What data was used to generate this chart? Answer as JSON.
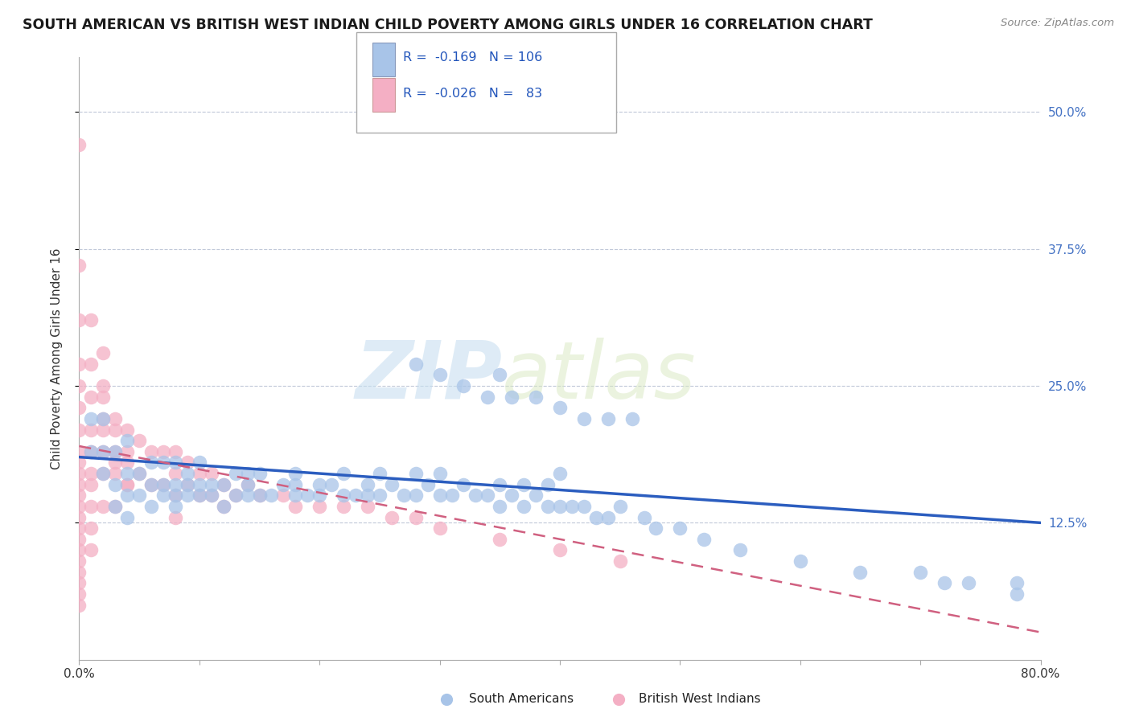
{
  "title": "SOUTH AMERICAN VS BRITISH WEST INDIAN CHILD POVERTY AMONG GIRLS UNDER 16 CORRELATION CHART",
  "source": "Source: ZipAtlas.com",
  "ylabel": "Child Poverty Among Girls Under 16",
  "xlim": [
    0.0,
    0.8
  ],
  "ylim": [
    0.0,
    0.55
  ],
  "ytick_values": [
    0.125,
    0.25,
    0.375,
    0.5
  ],
  "ytick_labels": [
    "12.5%",
    "25.0%",
    "37.5%",
    "50.0%"
  ],
  "sa_color": "#a8c4e8",
  "bwi_color": "#f4afc4",
  "sa_line_color": "#2b5dbf",
  "bwi_line_color": "#d06080",
  "watermark_zip": "ZIP",
  "watermark_atlas": "atlas",
  "title_fontsize": 12.5,
  "sa_R": -0.169,
  "sa_N": 106,
  "bwi_R": -0.026,
  "bwi_N": 83,
  "sa_line_x": [
    0.0,
    0.8
  ],
  "sa_line_y": [
    0.185,
    0.125
  ],
  "bwi_line_x": [
    0.0,
    0.8
  ],
  "bwi_line_y": [
    0.195,
    0.025
  ],
  "sa_scatter_x": [
    0.01,
    0.01,
    0.02,
    0.02,
    0.02,
    0.03,
    0.03,
    0.03,
    0.04,
    0.04,
    0.04,
    0.04,
    0.05,
    0.05,
    0.06,
    0.06,
    0.06,
    0.07,
    0.07,
    0.07,
    0.08,
    0.08,
    0.08,
    0.08,
    0.09,
    0.09,
    0.09,
    0.1,
    0.1,
    0.1,
    0.11,
    0.11,
    0.12,
    0.12,
    0.13,
    0.13,
    0.14,
    0.14,
    0.14,
    0.15,
    0.15,
    0.16,
    0.17,
    0.18,
    0.18,
    0.18,
    0.19,
    0.2,
    0.2,
    0.21,
    0.22,
    0.22,
    0.23,
    0.24,
    0.24,
    0.25,
    0.25,
    0.26,
    0.27,
    0.28,
    0.28,
    0.29,
    0.3,
    0.3,
    0.31,
    0.32,
    0.33,
    0.34,
    0.35,
    0.35,
    0.36,
    0.37,
    0.37,
    0.38,
    0.39,
    0.39,
    0.4,
    0.4,
    0.41,
    0.42,
    0.43,
    0.44,
    0.45,
    0.47,
    0.48,
    0.5,
    0.52,
    0.55,
    0.6,
    0.65,
    0.7,
    0.72,
    0.74,
    0.78,
    0.78,
    0.35,
    0.28,
    0.3,
    0.32,
    0.34,
    0.36,
    0.38,
    0.4,
    0.42,
    0.44,
    0.46
  ],
  "sa_scatter_y": [
    0.19,
    0.22,
    0.17,
    0.19,
    0.22,
    0.14,
    0.16,
    0.19,
    0.13,
    0.15,
    0.17,
    0.2,
    0.15,
    0.17,
    0.14,
    0.16,
    0.18,
    0.15,
    0.16,
    0.18,
    0.14,
    0.15,
    0.16,
    0.18,
    0.15,
    0.16,
    0.17,
    0.15,
    0.16,
    0.18,
    0.15,
    0.16,
    0.14,
    0.16,
    0.15,
    0.17,
    0.15,
    0.16,
    0.17,
    0.15,
    0.17,
    0.15,
    0.16,
    0.15,
    0.16,
    0.17,
    0.15,
    0.15,
    0.16,
    0.16,
    0.15,
    0.17,
    0.15,
    0.15,
    0.16,
    0.15,
    0.17,
    0.16,
    0.15,
    0.15,
    0.17,
    0.16,
    0.15,
    0.17,
    0.15,
    0.16,
    0.15,
    0.15,
    0.14,
    0.16,
    0.15,
    0.14,
    0.16,
    0.15,
    0.14,
    0.16,
    0.14,
    0.17,
    0.14,
    0.14,
    0.13,
    0.13,
    0.14,
    0.13,
    0.12,
    0.12,
    0.11,
    0.1,
    0.09,
    0.08,
    0.08,
    0.07,
    0.07,
    0.06,
    0.07,
    0.26,
    0.27,
    0.26,
    0.25,
    0.24,
    0.24,
    0.24,
    0.23,
    0.22,
    0.22,
    0.22
  ],
  "bwi_scatter_x": [
    0.0,
    0.0,
    0.0,
    0.0,
    0.0,
    0.0,
    0.0,
    0.0,
    0.0,
    0.0,
    0.0,
    0.0,
    0.0,
    0.0,
    0.0,
    0.0,
    0.0,
    0.0,
    0.0,
    0.0,
    0.0,
    0.0,
    0.01,
    0.01,
    0.01,
    0.01,
    0.01,
    0.01,
    0.01,
    0.01,
    0.01,
    0.01,
    0.02,
    0.02,
    0.02,
    0.02,
    0.02,
    0.02,
    0.03,
    0.03,
    0.03,
    0.03,
    0.04,
    0.04,
    0.04,
    0.05,
    0.05,
    0.06,
    0.06,
    0.07,
    0.07,
    0.08,
    0.08,
    0.08,
    0.08,
    0.09,
    0.09,
    0.1,
    0.1,
    0.11,
    0.11,
    0.12,
    0.12,
    0.13,
    0.14,
    0.15,
    0.17,
    0.18,
    0.2,
    0.22,
    0.24,
    0.26,
    0.28,
    0.3,
    0.35,
    0.4,
    0.45,
    0.02,
    0.02,
    0.03,
    0.03,
    0.04,
    0.04
  ],
  "bwi_scatter_y": [
    0.47,
    0.36,
    0.31,
    0.27,
    0.25,
    0.23,
    0.21,
    0.19,
    0.18,
    0.17,
    0.16,
    0.15,
    0.14,
    0.13,
    0.12,
    0.11,
    0.1,
    0.09,
    0.08,
    0.07,
    0.06,
    0.05,
    0.31,
    0.27,
    0.24,
    0.21,
    0.19,
    0.17,
    0.16,
    0.14,
    0.12,
    0.1,
    0.28,
    0.25,
    0.22,
    0.19,
    0.17,
    0.14,
    0.22,
    0.19,
    0.17,
    0.14,
    0.21,
    0.19,
    0.16,
    0.2,
    0.17,
    0.19,
    0.16,
    0.19,
    0.16,
    0.19,
    0.17,
    0.15,
    0.13,
    0.18,
    0.16,
    0.17,
    0.15,
    0.17,
    0.15,
    0.16,
    0.14,
    0.15,
    0.16,
    0.15,
    0.15,
    0.14,
    0.14,
    0.14,
    0.14,
    0.13,
    0.13,
    0.12,
    0.11,
    0.1,
    0.09,
    0.24,
    0.21,
    0.21,
    0.18,
    0.18,
    0.16
  ]
}
